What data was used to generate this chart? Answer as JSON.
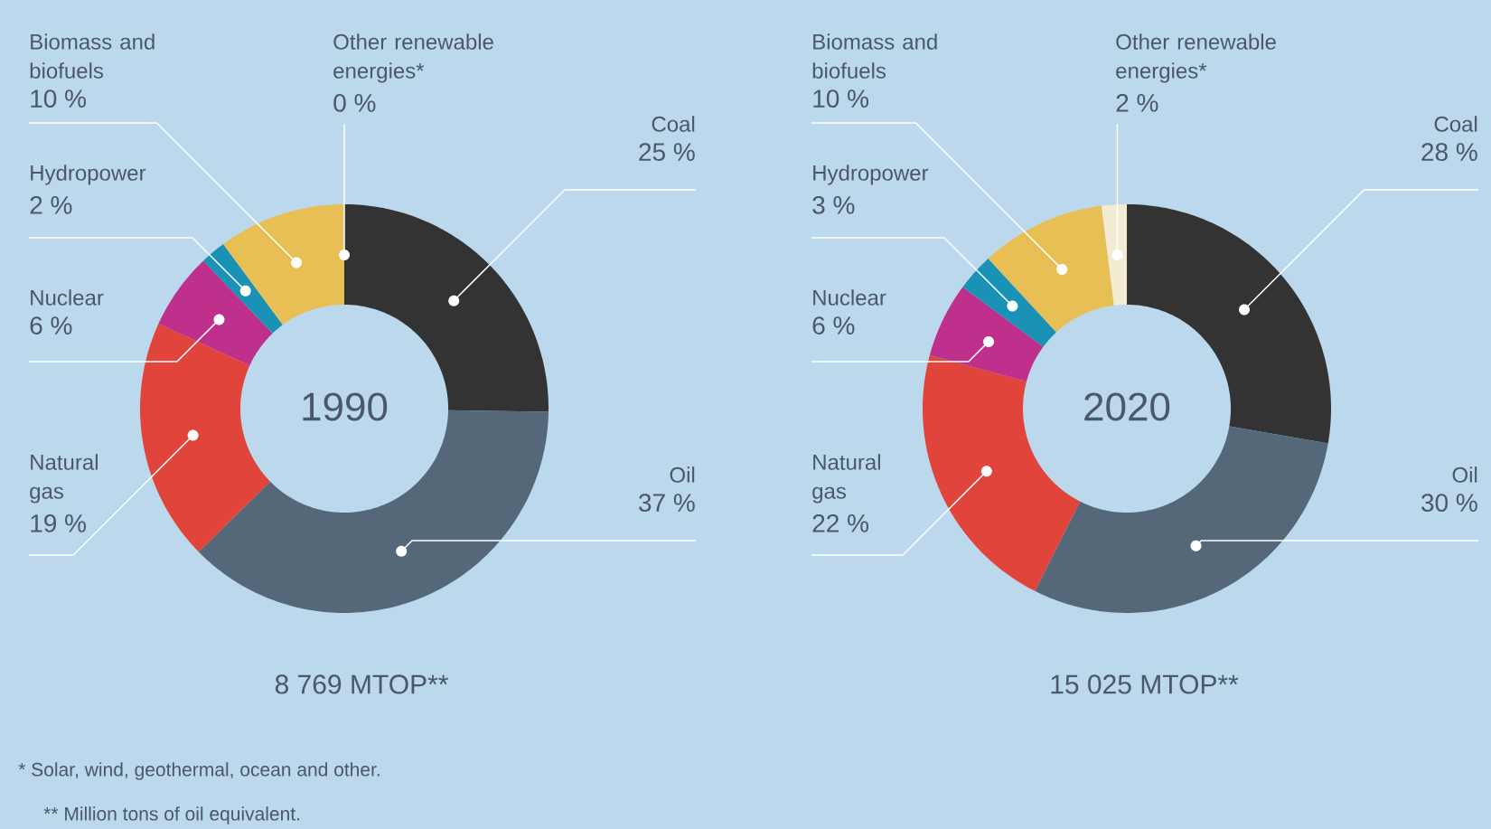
{
  "chart_data": [
    {
      "type": "donut",
      "title": "1990",
      "subtitle": "8 769 MTOP**",
      "categories": [
        "Coal",
        "Oil",
        "Natural gas",
        "Nuclear",
        "Hydropower",
        "Biomass and biofuels",
        "Other renewable energies*"
      ],
      "values": [
        25,
        37,
        19,
        6,
        2,
        10,
        0
      ],
      "value_labels": [
        "25 %",
        "37 %",
        "19 %",
        "6 %",
        "2 %",
        "10 %",
        "0 %"
      ],
      "colors": [
        "#333333",
        "#54687a",
        "#e0443a",
        "#bf2f8c",
        "#1a92b5",
        "#e8bf55",
        "#f3ecd2"
      ],
      "annotations": [
        "* Solar, wind, geothermal, ocean and other.",
        "** Million tons of oil equivalent."
      ]
    },
    {
      "type": "donut",
      "title": "2020",
      "subtitle": "15 025 MTOP**",
      "categories": [
        "Coal",
        "Oil",
        "Natural gas",
        "Nuclear",
        "Hydropower",
        "Biomass and biofuels",
        "Other renewable energies*"
      ],
      "values": [
        28,
        30,
        22,
        6,
        3,
        10,
        2
      ],
      "value_labels": [
        "28 %",
        "30 %",
        "22 %",
        "6 %",
        "3 %",
        "10 %",
        "2 %"
      ],
      "colors": [
        "#333333",
        "#54687a",
        "#e0443a",
        "#bf2f8c",
        "#1a92b5",
        "#e8bf55",
        "#f3ecd2"
      ]
    }
  ]
}
